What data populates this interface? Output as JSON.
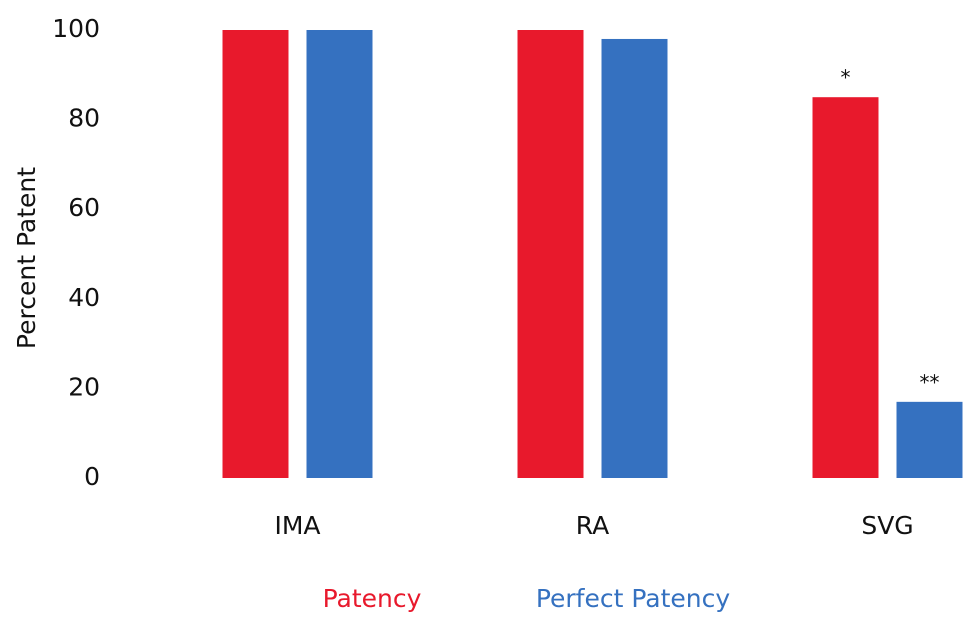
{
  "chart_data": {
    "type": "bar",
    "y_label": "Percent Patent",
    "categories": [
      "IMA",
      "RA",
      "SVG"
    ],
    "series": [
      {
        "name": "Patency",
        "color": "#e8192c",
        "values": [
          100,
          100,
          85
        ],
        "annotations": [
          null,
          null,
          "*"
        ]
      },
      {
        "name": "Perfect Patency",
        "color": "#3571c0",
        "values": [
          100,
          98,
          17
        ],
        "annotations": [
          null,
          null,
          "**"
        ]
      }
    ],
    "ylim": [
      0,
      100
    ],
    "yticks": [
      0,
      20,
      40,
      60,
      80,
      100
    ],
    "grid": false
  }
}
